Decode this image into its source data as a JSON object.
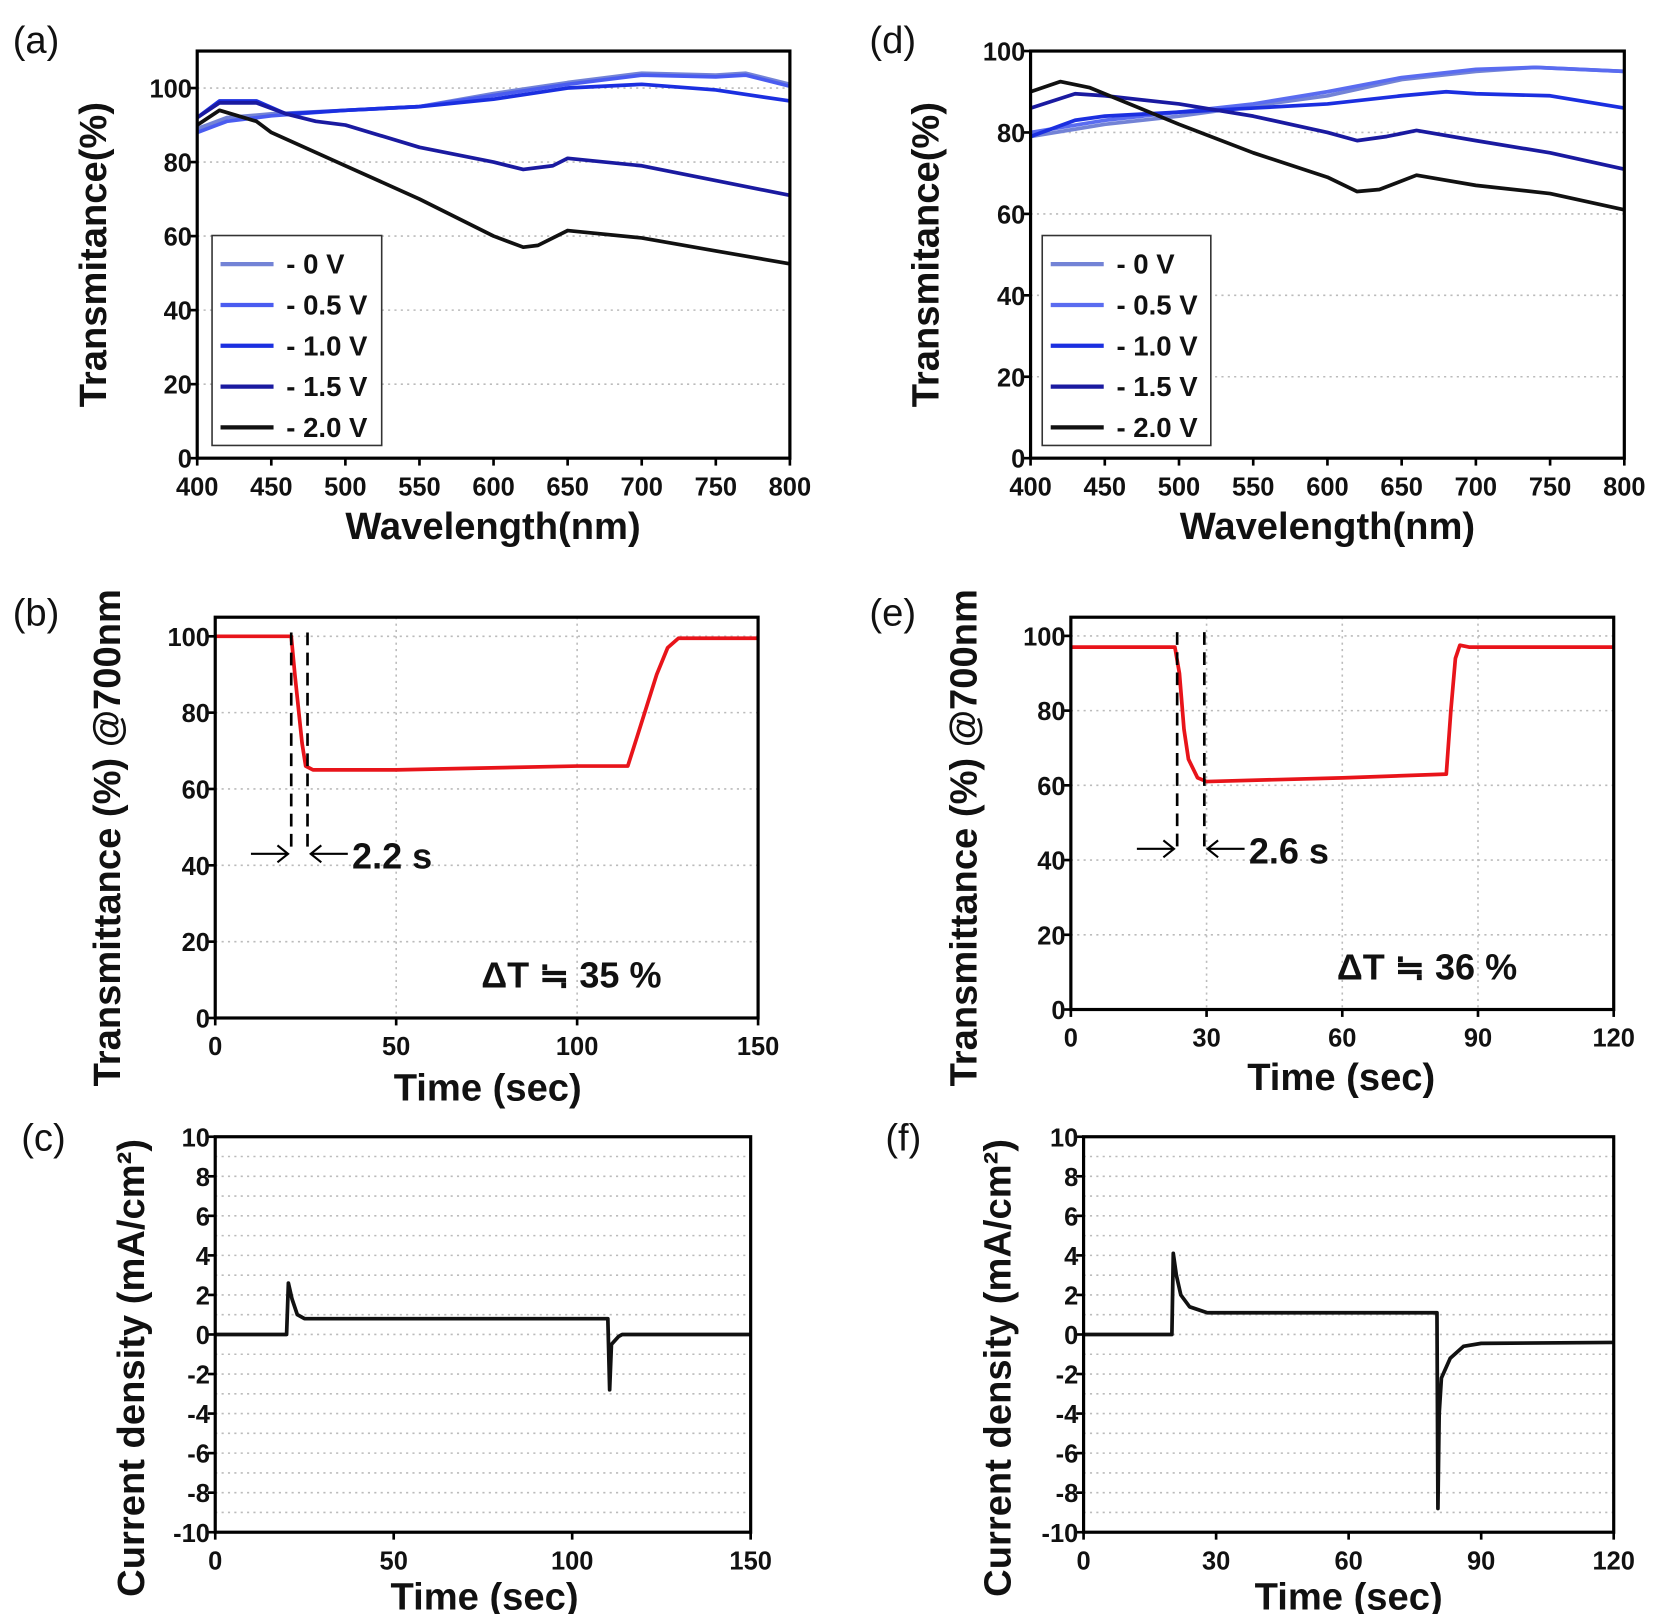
{
  "chart_data": [
    {
      "id": "a",
      "panel_label": "(a)",
      "type": "line",
      "xlabel": "Wavelength(nm)",
      "ylabel": "Transmitance(%)",
      "xlim": [
        400,
        800
      ],
      "ylim": [
        0,
        110
      ],
      "xticks": [
        400,
        450,
        500,
        550,
        600,
        650,
        700,
        750,
        800
      ],
      "yticks": [
        0,
        20,
        40,
        60,
        80,
        100
      ],
      "grid": "horizontal dotted",
      "legend_position": "lower-left",
      "series": [
        {
          "name": "- 0 V",
          "color": "#7383d6",
          "x": [
            400,
            420,
            450,
            500,
            550,
            600,
            650,
            700,
            750,
            770,
            800
          ],
          "y": [
            89,
            92,
            93,
            94,
            95,
            98.5,
            101.5,
            104,
            103.5,
            104,
            101
          ]
        },
        {
          "name": "- 0.5 V",
          "color": "#4a5cf0",
          "x": [
            400,
            420,
            450,
            500,
            550,
            600,
            650,
            700,
            750,
            770,
            800
          ],
          "y": [
            88,
            91,
            92.5,
            94,
            95,
            98,
            101,
            103.5,
            103,
            103.5,
            100.5
          ]
        },
        {
          "name": "- 1.0 V",
          "color": "#1b2fe0",
          "x": [
            400,
            415,
            440,
            460,
            500,
            550,
            600,
            650,
            700,
            750,
            800
          ],
          "y": [
            92,
            96.5,
            96.5,
            93,
            94,
            95,
            97,
            100,
            101,
            99.5,
            96.5
          ]
        },
        {
          "name": "- 1.5 V",
          "color": "#1a1aa0",
          "x": [
            400,
            415,
            440,
            460,
            480,
            500,
            550,
            600,
            620,
            640,
            650,
            700,
            750,
            800
          ],
          "y": [
            92,
            96,
            96,
            93,
            91,
            90,
            84,
            80,
            78,
            79,
            81,
            79,
            75,
            71
          ]
        },
        {
          "name": "- 2.0 V",
          "color": "#111111",
          "x": [
            400,
            415,
            440,
            450,
            500,
            550,
            600,
            620,
            630,
            650,
            700,
            750,
            800
          ],
          "y": [
            90,
            94,
            91,
            88,
            79,
            70,
            60,
            57,
            57.5,
            61.5,
            59.5,
            56,
            52.5
          ]
        }
      ]
    },
    {
      "id": "d",
      "panel_label": "(d)",
      "type": "line",
      "xlabel": "Wavelength(nm)",
      "ylabel": "Transmitance(%)",
      "xlim": [
        400,
        800
      ],
      "ylim": [
        0,
        100
      ],
      "xticks": [
        400,
        450,
        500,
        550,
        600,
        650,
        700,
        750,
        800
      ],
      "yticks": [
        0,
        20,
        40,
        60,
        80,
        100
      ],
      "grid": "horizontal dotted",
      "legend_position": "lower-left",
      "series": [
        {
          "name": "- 0 V",
          "color": "#7383d6",
          "x": [
            400,
            450,
            500,
            550,
            600,
            650,
            700,
            740,
            800
          ],
          "y": [
            79,
            82,
            84,
            86.5,
            89,
            93,
            95,
            96,
            95
          ]
        },
        {
          "name": "- 0.5 V",
          "color": "#5a6cf0",
          "x": [
            400,
            450,
            500,
            550,
            600,
            650,
            700,
            740,
            800
          ],
          "y": [
            80,
            83,
            85,
            87,
            90,
            93.5,
            95.5,
            96,
            95
          ]
        },
        {
          "name": "- 1.0 V",
          "color": "#1b2fe0",
          "x": [
            400,
            430,
            450,
            500,
            550,
            600,
            650,
            680,
            700,
            750,
            800
          ],
          "y": [
            79,
            83,
            84,
            85,
            86,
            87,
            89,
            90,
            89.5,
            89,
            86
          ]
        },
        {
          "name": "- 1.5 V",
          "color": "#1a1aa0",
          "x": [
            400,
            430,
            450,
            500,
            550,
            600,
            620,
            640,
            660,
            700,
            750,
            800
          ],
          "y": [
            86,
            89.5,
            89,
            87,
            84,
            80,
            78,
            79,
            80.5,
            78,
            75,
            71
          ]
        },
        {
          "name": "- 2.0 V",
          "color": "#111111",
          "x": [
            400,
            420,
            440,
            500,
            550,
            600,
            620,
            635,
            660,
            700,
            750,
            800
          ],
          "y": [
            90,
            92.5,
            91,
            82,
            75,
            69,
            65.5,
            66,
            69.5,
            67,
            65,
            61
          ]
        }
      ]
    },
    {
      "id": "b",
      "panel_label": "(b)",
      "type": "line",
      "xlabel": "Time (sec)",
      "ylabel": "Transmittance (%) @700nm",
      "xlim": [
        0,
        150
      ],
      "ylim": [
        0,
        105
      ],
      "xticks": [
        0,
        50,
        100,
        150
      ],
      "yticks": [
        0,
        20,
        40,
        60,
        80,
        100
      ],
      "grid": "both dotted",
      "series": [
        {
          "color": "#e8141a",
          "x": [
            0,
            21,
            22,
            24,
            25,
            27,
            50,
            100,
            114,
            117,
            122,
            125,
            128,
            150
          ],
          "y": [
            100,
            100,
            90,
            72,
            66,
            65,
            65,
            66,
            66,
            75,
            90,
            97,
            99.5,
            99.5
          ]
        }
      ],
      "markers_x": [
        21,
        25.5
      ],
      "response_time": "2.2 s",
      "delta_t": "ΔT ≒ 35 %"
    },
    {
      "id": "e",
      "panel_label": "(e)",
      "type": "line",
      "xlabel": "Time (sec)",
      "ylabel": "Transmittance (%) @700nm",
      "xlim": [
        0,
        120
      ],
      "ylim": [
        0,
        105
      ],
      "xticks": [
        0,
        30,
        60,
        90,
        120
      ],
      "yticks": [
        0,
        20,
        40,
        60,
        80,
        100
      ],
      "grid": "both dotted",
      "series": [
        {
          "color": "#e8141a",
          "x": [
            0,
            23,
            24,
            25,
            26,
            28,
            30,
            60,
            83,
            84,
            85,
            86,
            88,
            120
          ],
          "y": [
            97,
            97,
            90,
            75,
            67,
            62,
            61,
            62,
            63,
            80,
            94,
            97.5,
            97,
            97
          ]
        }
      ],
      "markers_x": [
        23.5,
        29.5
      ],
      "response_time": "2.6 s",
      "delta_t": "ΔT ≒ 36 %"
    },
    {
      "id": "c",
      "panel_label": "(c)",
      "type": "line",
      "xlabel": "Time (sec)",
      "ylabel": "Current density (mA/cm²)",
      "xlim": [
        0,
        150
      ],
      "ylim": [
        -10,
        10
      ],
      "xticks": [
        0,
        50,
        100,
        150
      ],
      "yticks": [
        -10,
        -8,
        -6,
        -4,
        -2,
        0,
        2,
        4,
        6,
        8,
        10
      ],
      "grid": "horizontal dotted",
      "series": [
        {
          "color": "#111111",
          "x": [
            0,
            20,
            20.5,
            21.5,
            23,
            25,
            110,
            110.5,
            111,
            113,
            114,
            150
          ],
          "y": [
            0,
            0,
            2.6,
            1.8,
            1.0,
            0.8,
            0.8,
            -2.8,
            -0.5,
            -0.1,
            0,
            0
          ]
        }
      ]
    },
    {
      "id": "f",
      "panel_label": "(f)",
      "type": "line",
      "xlabel": "Time (sec)",
      "ylabel": "Current density (mA/cm²)",
      "xlim": [
        0,
        120
      ],
      "ylim": [
        -10,
        10
      ],
      "xticks": [
        0,
        30,
        60,
        90,
        120
      ],
      "yticks": [
        -10,
        -8,
        -6,
        -4,
        -2,
        0,
        2,
        4,
        6,
        8,
        10
      ],
      "grid": "horizontal dotted",
      "series": [
        {
          "color": "#111111",
          "x": [
            0,
            20,
            20.3,
            21,
            22,
            24,
            28,
            80,
            80.2,
            80.5,
            81,
            83,
            86,
            90,
            120
          ],
          "y": [
            0,
            0,
            4.1,
            3,
            2,
            1.4,
            1.1,
            1.1,
            -8.8,
            -4,
            -2.2,
            -1.2,
            -0.6,
            -0.45,
            -0.4
          ]
        }
      ]
    }
  ]
}
